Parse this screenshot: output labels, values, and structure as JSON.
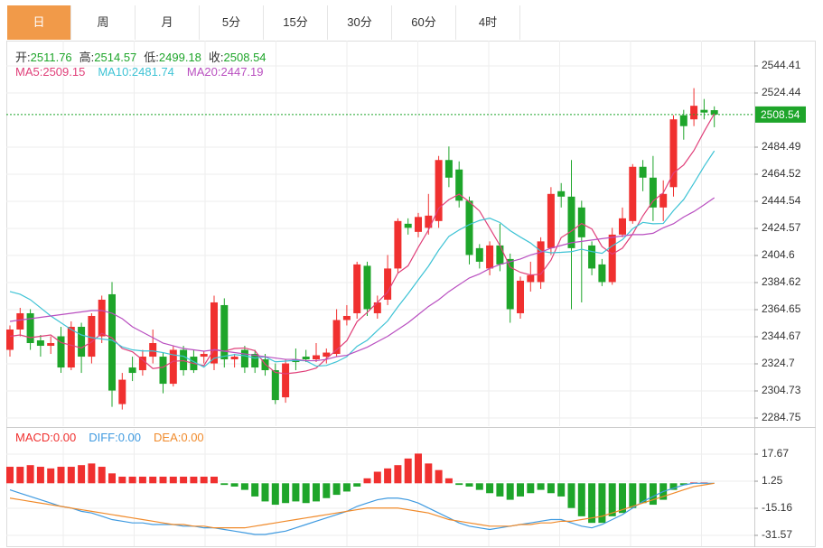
{
  "tabs": {
    "items": [
      "日",
      "周",
      "月",
      "5分",
      "15分",
      "30分",
      "60分",
      "4时"
    ],
    "selected": 0
  },
  "chart_data": [
    {
      "type": "candlestick",
      "ohlc_labels": [
        "开:",
        "高:",
        "低:",
        "收:"
      ],
      "up_color": "#f0302f",
      "down_color": "#1ea52a",
      "open": [
        2335,
        2350,
        2362,
        2342,
        2338,
        2345,
        2322,
        2352,
        2330,
        2345,
        2376,
        2295,
        2322,
        2320,
        2330,
        2330,
        2310,
        2335,
        2330,
        2330,
        2325,
        2368,
        2328,
        2335,
        2332,
        2328,
        2320,
        2300,
        2328,
        2330,
        2328,
        2330,
        2332,
        2357,
        2362,
        2397,
        2362,
        2372,
        2395,
        2428,
        2422,
        2425,
        2430,
        2475,
        2468,
        2445,
        2410,
        2395,
        2412,
        2402,
        2362,
        2385,
        2385,
        2410,
        2452,
        2448,
        2440,
        2412,
        2398,
        2385,
        2420,
        2430,
        2470,
        2462,
        2440,
        2455,
        2508,
        2505,
        2512,
        2511.76
      ],
      "high": [
        2353,
        2366,
        2365,
        2346,
        2345,
        2352,
        2356,
        2355,
        2362,
        2375,
        2385,
        2318,
        2330,
        2335,
        2350,
        2333,
        2338,
        2338,
        2335,
        2334,
        2375,
        2373,
        2332,
        2338,
        2335,
        2332,
        2325,
        2328,
        2336,
        2335,
        2340,
        2336,
        2365,
        2368,
        2400,
        2400,
        2375,
        2405,
        2432,
        2432,
        2436,
        2450,
        2478,
        2485,
        2474,
        2448,
        2413,
        2415,
        2428,
        2406,
        2389,
        2400,
        2418,
        2455,
        2458,
        2475,
        2445,
        2415,
        2402,
        2425,
        2440,
        2472,
        2475,
        2478,
        2460,
        2508,
        2512,
        2528,
        2520,
        2514.57
      ],
      "low": [
        2330,
        2345,
        2335,
        2330,
        2332,
        2318,
        2320,
        2318,
        2325,
        2340,
        2293,
        2291,
        2312,
        2316,
        2325,
        2303,
        2308,
        2316,
        2318,
        2325,
        2320,
        2322,
        2322,
        2318,
        2318,
        2316,
        2295,
        2296,
        2320,
        2326,
        2326,
        2325,
        2330,
        2353,
        2358,
        2360,
        2358,
        2368,
        2392,
        2420,
        2418,
        2420,
        2425,
        2455,
        2440,
        2398,
        2395,
        2390,
        2393,
        2355,
        2358,
        2378,
        2380,
        2405,
        2440,
        2365,
        2370,
        2390,
        2382,
        2383,
        2418,
        2428,
        2452,
        2430,
        2430,
        2448,
        2490,
        2500,
        2505,
        2499.18
      ],
      "close": [
        2350,
        2362,
        2340,
        2338,
        2340,
        2322,
        2352,
        2330,
        2360,
        2372,
        2305,
        2313,
        2318,
        2330,
        2340,
        2310,
        2335,
        2320,
        2320,
        2332,
        2370,
        2328,
        2330,
        2322,
        2322,
        2320,
        2298,
        2325,
        2326,
        2328,
        2331,
        2333,
        2357,
        2360,
        2398,
        2365,
        2370,
        2395,
        2430,
        2425,
        2433,
        2434,
        2475,
        2462,
        2445,
        2405,
        2400,
        2412,
        2398,
        2365,
        2386,
        2390,
        2415,
        2450,
        2448,
        2410,
        2418,
        2395,
        2385,
        2420,
        2432,
        2470,
        2462,
        2440,
        2450,
        2505,
        2500,
        2515,
        2510,
        2508.54
      ],
      "series": [
        {
          "name": "MA5:",
          "color": "#e0407a",
          "values": [
            2345,
            2346,
            2344,
            2345,
            2346,
            2340.4,
            2338.4,
            2336.4,
            2340.8,
            2347.2,
            2343.8,
            2336,
            2333.6,
            2327.6,
            2321.2,
            2322.2,
            2326.6,
            2327,
            2325,
            2323.4,
            2335.4,
            2334,
            2336,
            2336.4,
            2334.4,
            2324.4,
            2318.4,
            2317.4,
            2318.2,
            2319.4,
            2321.6,
            2328.6,
            2335,
            2341.8,
            2355.8,
            2362.6,
            2370,
            2377.6,
            2391.6,
            2397,
            2410.6,
            2423.4,
            2439.4,
            2445.8,
            2449.8,
            2444.2,
            2437.4,
            2424.8,
            2412,
            2396,
            2392.2,
            2390.2,
            2390.8,
            2401.2,
            2417.8,
            2422.6,
            2428.2,
            2424.2,
            2411.2,
            2405.6,
            2410,
            2420.4,
            2433.8,
            2444.8,
            2450.8,
            2465.4,
            2471.4,
            2482,
            2496,
            2509.15
          ]
        },
        {
          "name": "MA10:",
          "color": "#3ec3d5",
          "values": [
            2378,
            2376,
            2372,
            2366,
            2360,
            2355,
            2350,
            2346,
            2344,
            2343,
            2342.1,
            2337.2,
            2335,
            2334.2,
            2334.2,
            2333,
            2331.3,
            2330.3,
            2326.3,
            2322.3,
            2328.8,
            2330.3,
            2331.5,
            2330.7,
            2328.9,
            2329.9,
            2326.2,
            2326.7,
            2327.3,
            2326.9,
            2323,
            2323.5,
            2326.2,
            2330,
            2337.6,
            2342.1,
            2349.3,
            2356.3,
            2366.7,
            2376.4,
            2386.6,
            2396.7,
            2408.5,
            2418.7,
            2423.4,
            2427.4,
            2430.4,
            2432.1,
            2428.9,
            2422.9,
            2418.2,
            2413.8,
            2407.8,
            2406.6,
            2406.9,
            2407.4,
            2409.2,
            2407.5,
            2406.2,
            2411.7,
            2416.3,
            2424.3,
            2429,
            2428,
            2428.2,
            2437.7,
            2445.9,
            2457.9,
            2470.4,
            2481.74
          ]
        },
        {
          "name": "MA20:",
          "color": "#b94fc0",
          "values": [
            2356,
            2357,
            2358,
            2359,
            2360,
            2361,
            2362,
            2363,
            2364,
            2364,
            2362,
            2358,
            2352,
            2348,
            2344,
            2340,
            2338,
            2336,
            2335,
            2334,
            2335,
            2334,
            2333,
            2332,
            2331,
            2330,
            2329,
            2328,
            2328,
            2327,
            2327,
            2328,
            2330,
            2331,
            2334,
            2337,
            2341,
            2345,
            2350,
            2355,
            2361,
            2367,
            2372,
            2378,
            2383,
            2388,
            2391,
            2395,
            2398,
            2400,
            2402,
            2405,
            2407,
            2410,
            2412,
            2414,
            2415,
            2416,
            2417,
            2418,
            2419,
            2420,
            2420,
            2421,
            2425,
            2428,
            2433,
            2437,
            2442,
            2447.19
          ]
        }
      ],
      "ylim": [
        2278.76,
        2563.05
      ],
      "yticks": [
        2284.75,
        2304.73,
        2324.7,
        2344.67,
        2364.65,
        2384.62,
        2404.6,
        2424.57,
        2444.54,
        2464.52,
        2484.49,
        2524.44,
        2544.41
      ],
      "grid": true,
      "last_price_line": true
    },
    {
      "type": "macd",
      "up_color": "#f0302f",
      "down_color": "#1ea52a",
      "bars": {
        "name": "MACD:",
        "values": [
          10,
          10,
          11,
          10,
          9,
          10,
          10,
          11,
          12,
          10,
          6,
          4,
          4,
          4,
          4,
          4,
          4,
          4,
          4,
          4,
          4,
          -1,
          -2,
          -4,
          -8,
          -11,
          -13,
          -12,
          -11,
          -12,
          -11,
          -9,
          -7,
          -5,
          -2,
          3,
          7,
          9,
          11,
          15,
          18,
          12,
          8,
          3,
          -1,
          -2,
          -4,
          -6,
          -8,
          -10,
          -8,
          -6,
          -4,
          -6,
          -8,
          -15,
          -20,
          -24,
          -24,
          -20,
          -18,
          -15,
          -12,
          -13,
          -10,
          -4,
          -1,
          0.5,
          0.5,
          0
        ],
        "value_labels": {
          "69": "0.00"
        }
      },
      "series": [
        {
          "name": "DIFF:",
          "color": "#3f9ae0",
          "values": [
            -4,
            -6,
            -8,
            -10,
            -12,
            -14,
            -15,
            -17,
            -18,
            -20,
            -22,
            -23,
            -24,
            -24,
            -25,
            -25,
            -25,
            -26,
            -26,
            -27,
            -27,
            -28,
            -29,
            -30,
            -31,
            -31,
            -30,
            -29,
            -27,
            -25,
            -23,
            -21,
            -19,
            -17,
            -14,
            -12,
            -10,
            -9,
            -9,
            -10,
            -12,
            -15,
            -18,
            -21,
            -24,
            -26,
            -27,
            -28,
            -27,
            -26,
            -25,
            -24,
            -23,
            -22,
            -22,
            -24,
            -26,
            -27,
            -25,
            -22,
            -19,
            -15,
            -11,
            -8,
            -5,
            -3,
            -1,
            0,
            0,
            0
          ],
          "value_labels": {
            "69": "0.00"
          }
        },
        {
          "name": "DEA:",
          "color": "#f08a2a",
          "values": [
            -9,
            -10,
            -11,
            -12,
            -13,
            -14,
            -15,
            -16,
            -17,
            -18,
            -19,
            -20,
            -21,
            -22,
            -23,
            -24,
            -25,
            -25,
            -26,
            -26,
            -27,
            -27,
            -27,
            -27,
            -26,
            -25,
            -24,
            -23,
            -22,
            -21,
            -20,
            -19,
            -18,
            -17,
            -16,
            -15,
            -15,
            -15,
            -15,
            -16,
            -17,
            -18,
            -20,
            -22,
            -23,
            -24,
            -25,
            -26,
            -26,
            -26,
            -25,
            -25,
            -24,
            -24,
            -23,
            -23,
            -22,
            -21,
            -20,
            -18,
            -16,
            -14,
            -12,
            -10,
            -8,
            -6,
            -4,
            -2,
            -1,
            0
          ],
          "value_labels": {
            "69": "0.00"
          }
        }
      ],
      "ylim": [
        -38.13,
        32.99
      ],
      "yticks": [
        -31.57,
        -15.16,
        1.25,
        17.67
      ],
      "grid": true
    }
  ]
}
